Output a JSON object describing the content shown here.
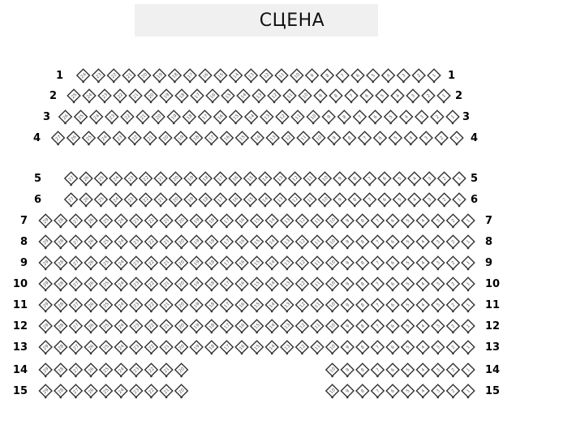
{
  "stage": {
    "label": "СЦЕНА",
    "background": "#f0f0f0"
  },
  "colors": {
    "seat_border": "#333333",
    "seat_fill": "#ffffff",
    "seat_number": "#555555"
  },
  "rows": [
    {
      "label": "1",
      "sections": [
        {
          "from": 24,
          "to": 1
        }
      ]
    },
    {
      "label": "2",
      "sections": [
        {
          "from": 25,
          "to": 1
        }
      ]
    },
    {
      "label": "3",
      "sections": [
        {
          "from": 26,
          "to": 1
        }
      ]
    },
    {
      "label": "4",
      "sections": [
        {
          "from": 27,
          "to": 1
        }
      ]
    },
    {
      "label": "5",
      "sections": [
        {
          "from": 27,
          "to": 1
        }
      ]
    },
    {
      "label": "6",
      "sections": [
        {
          "from": 27,
          "to": 1
        }
      ]
    },
    {
      "label": "7",
      "sections": [
        {
          "from": 29,
          "to": 1
        }
      ]
    },
    {
      "label": "8",
      "sections": [
        {
          "from": 29,
          "to": 1
        }
      ]
    },
    {
      "label": "9",
      "sections": [
        {
          "from": 29,
          "to": 1
        }
      ]
    },
    {
      "label": "10",
      "sections": [
        {
          "from": 29,
          "to": 1
        }
      ]
    },
    {
      "label": "11",
      "sections": [
        {
          "from": 29,
          "to": 1
        }
      ]
    },
    {
      "label": "12",
      "sections": [
        {
          "from": 29,
          "to": 1
        }
      ]
    },
    {
      "label": "13",
      "sections": [
        {
          "from": 29,
          "to": 1
        }
      ]
    },
    {
      "label": "14",
      "sections": [
        {
          "from": 29,
          "to": 20
        },
        {
          "from": 10,
          "to": 1
        }
      ]
    },
    {
      "label": "15",
      "sections": [
        {
          "from": 29,
          "to": 20
        },
        {
          "from": 10,
          "to": 1
        }
      ]
    }
  ]
}
